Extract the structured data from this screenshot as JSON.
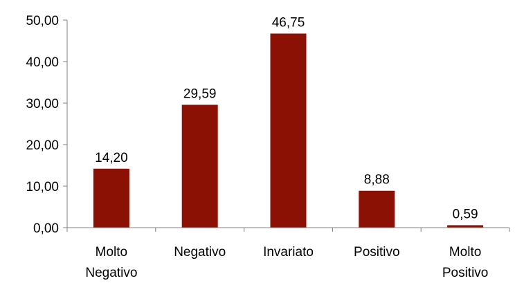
{
  "chart_data": {
    "type": "bar",
    "categories": [
      [
        "Molto",
        "Negativo"
      ],
      [
        "Negativo"
      ],
      [
        "Invariato"
      ],
      [
        "Positivo"
      ],
      [
        "Molto",
        "Positivo"
      ]
    ],
    "values": [
      14.2,
      29.59,
      46.75,
      8.88,
      0.59
    ],
    "value_labels": [
      "14,20",
      "29,59",
      "46,75",
      "8,88",
      "0,59"
    ],
    "y_ticks": [
      0,
      10,
      20,
      30,
      40,
      50
    ],
    "y_tick_labels": [
      "0,00",
      "10,00",
      "20,00",
      "30,00",
      "40,00",
      "50,00"
    ],
    "ylim": [
      0,
      50
    ],
    "grid": false,
    "legend": "none",
    "title": "",
    "xlabel": "",
    "ylabel": "",
    "colors": {
      "bar": "#8B1104",
      "axis": "#808080"
    }
  }
}
